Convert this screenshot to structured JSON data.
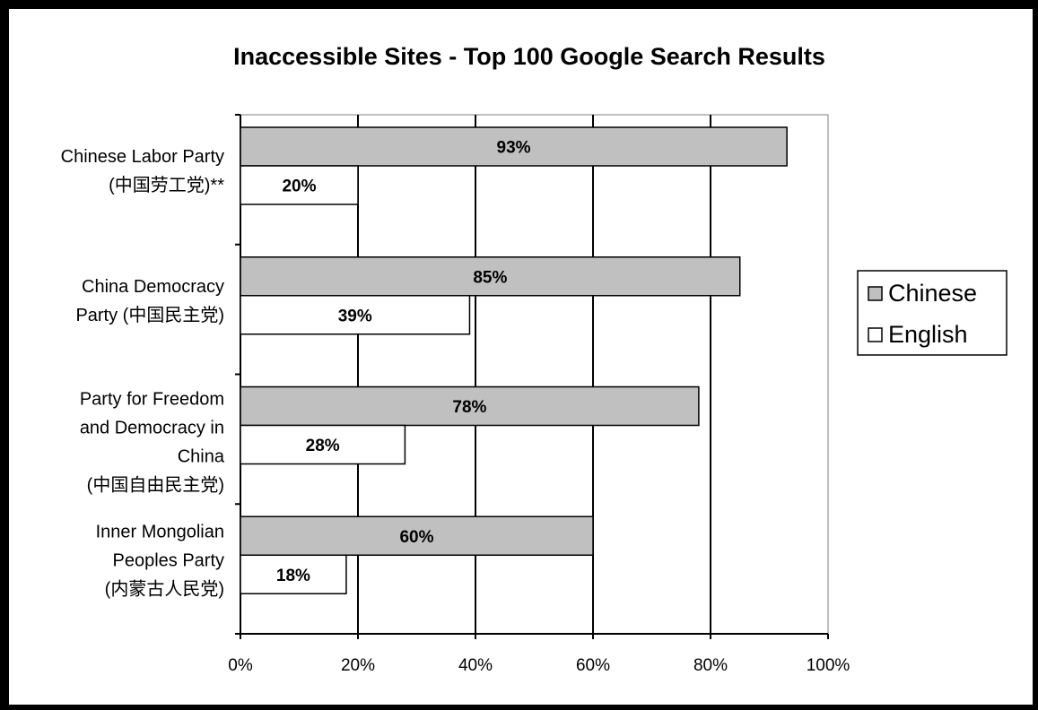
{
  "chart_data": {
    "type": "bar",
    "orientation": "horizontal",
    "title": "Inaccessible Sites - Top 100 Google Search Results",
    "categories": [
      [
        "Chinese Labor Party",
        "(中国劳工党)**"
      ],
      [
        "China Democracy",
        "Party (中国民主党)"
      ],
      [
        "Party for Freedom",
        "and Democracy in",
        "China",
        "(中国自由民主党)"
      ],
      [
        "Inner Mongolian",
        "Peoples Party",
        "(内蒙古人民党)"
      ]
    ],
    "series": [
      {
        "name": "Chinese",
        "values": [
          93,
          85,
          78,
          60
        ],
        "labels": [
          "93%",
          "85%",
          "78%",
          "60%"
        ],
        "color": "#c0c0c0"
      },
      {
        "name": "English",
        "values": [
          20,
          39,
          28,
          18
        ],
        "labels": [
          "20%",
          "39%",
          "28%",
          "18%"
        ],
        "color": "#ffffff"
      }
    ],
    "xlim": [
      0,
      100
    ],
    "xticks": [
      "0%",
      "20%",
      "40%",
      "60%",
      "80%",
      "100%"
    ],
    "grid": true,
    "legend_position": "right"
  }
}
